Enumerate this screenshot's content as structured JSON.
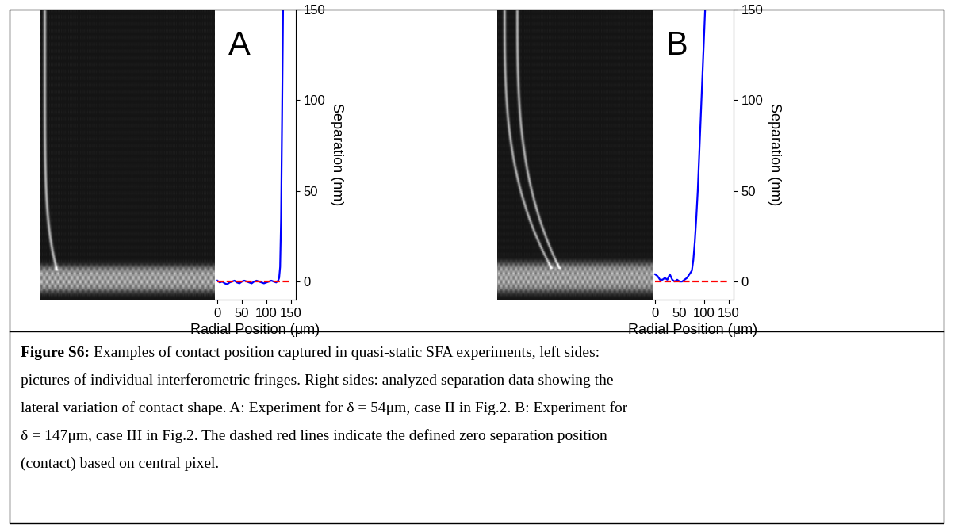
{
  "chart_data": [
    {
      "type": "line",
      "panel": "A",
      "xlabel": "Radial Position (μm)",
      "ylabel": "Separation (nm)",
      "xlim": [
        -5,
        160
      ],
      "xticks": [
        0,
        50,
        100,
        150
      ],
      "ylim": [
        -10,
        150
      ],
      "yticks": [
        0,
        50,
        100,
        150
      ],
      "series": [
        {
          "color": "#0000ff",
          "line_style": "solid",
          "x": [
            0,
            5,
            10,
            15,
            20,
            25,
            30,
            35,
            40,
            45,
            50,
            55,
            60,
            65,
            70,
            75,
            80,
            85,
            90,
            95,
            100,
            105,
            110,
            115,
            120,
            124,
            126,
            128,
            130,
            132,
            134
          ],
          "values": [
            0.5,
            -0.5,
            0,
            -1,
            -1.5,
            -0.5,
            0,
            0.5,
            -0.5,
            -1,
            0,
            0.5,
            0,
            -0.5,
            -1,
            0,
            0.5,
            0,
            -0.5,
            -1,
            -0.5,
            0,
            0.5,
            0,
            -0.5,
            0.5,
            2,
            8,
            35,
            90,
            150
          ]
        },
        {
          "color": "#ff0000",
          "line_style": "dashed",
          "x": [
            0,
            150
          ],
          "values": [
            0,
            0
          ]
        }
      ]
    },
    {
      "type": "line",
      "panel": "B",
      "xlabel": "Radial Position (μm)",
      "ylabel": "Separation (nm)",
      "xlim": [
        -5,
        160
      ],
      "xticks": [
        0,
        50,
        100,
        150
      ],
      "ylim": [
        -10,
        150
      ],
      "yticks": [
        0,
        50,
        100,
        150
      ],
      "series": [
        {
          "color": "#0000ff",
          "line_style": "solid",
          "x": [
            0,
            5,
            10,
            15,
            20,
            25,
            30,
            35,
            40,
            45,
            50,
            55,
            60,
            65,
            70,
            75,
            78,
            81,
            84,
            87,
            90,
            93,
            96,
            99,
            102
          ],
          "values": [
            4,
            3,
            1,
            1,
            2,
            1,
            4,
            1,
            0,
            1,
            0,
            0,
            1,
            2,
            4,
            6,
            12,
            22,
            35,
            50,
            70,
            90,
            110,
            130,
            150
          ]
        },
        {
          "color": "#ff0000",
          "line_style": "dashed",
          "x": [
            0,
            150
          ],
          "values": [
            0,
            0
          ]
        }
      ]
    }
  ],
  "caption": {
    "label": "Figure S6:",
    "lines": [
      "Examples of contact position captured in quasi-static SFA experiments, left sides:",
      "pictures of individual interferometric fringes. Right sides: analyzed separation data showing the",
      "lateral variation of contact shape. A: Experiment for δ = 54μm, case II in Fig.2. B: Experiment for",
      "δ = 147μm, case III in Fig.2. The dashed red lines indicate the defined zero separation position",
      "(contact) based on central pixel."
    ]
  }
}
